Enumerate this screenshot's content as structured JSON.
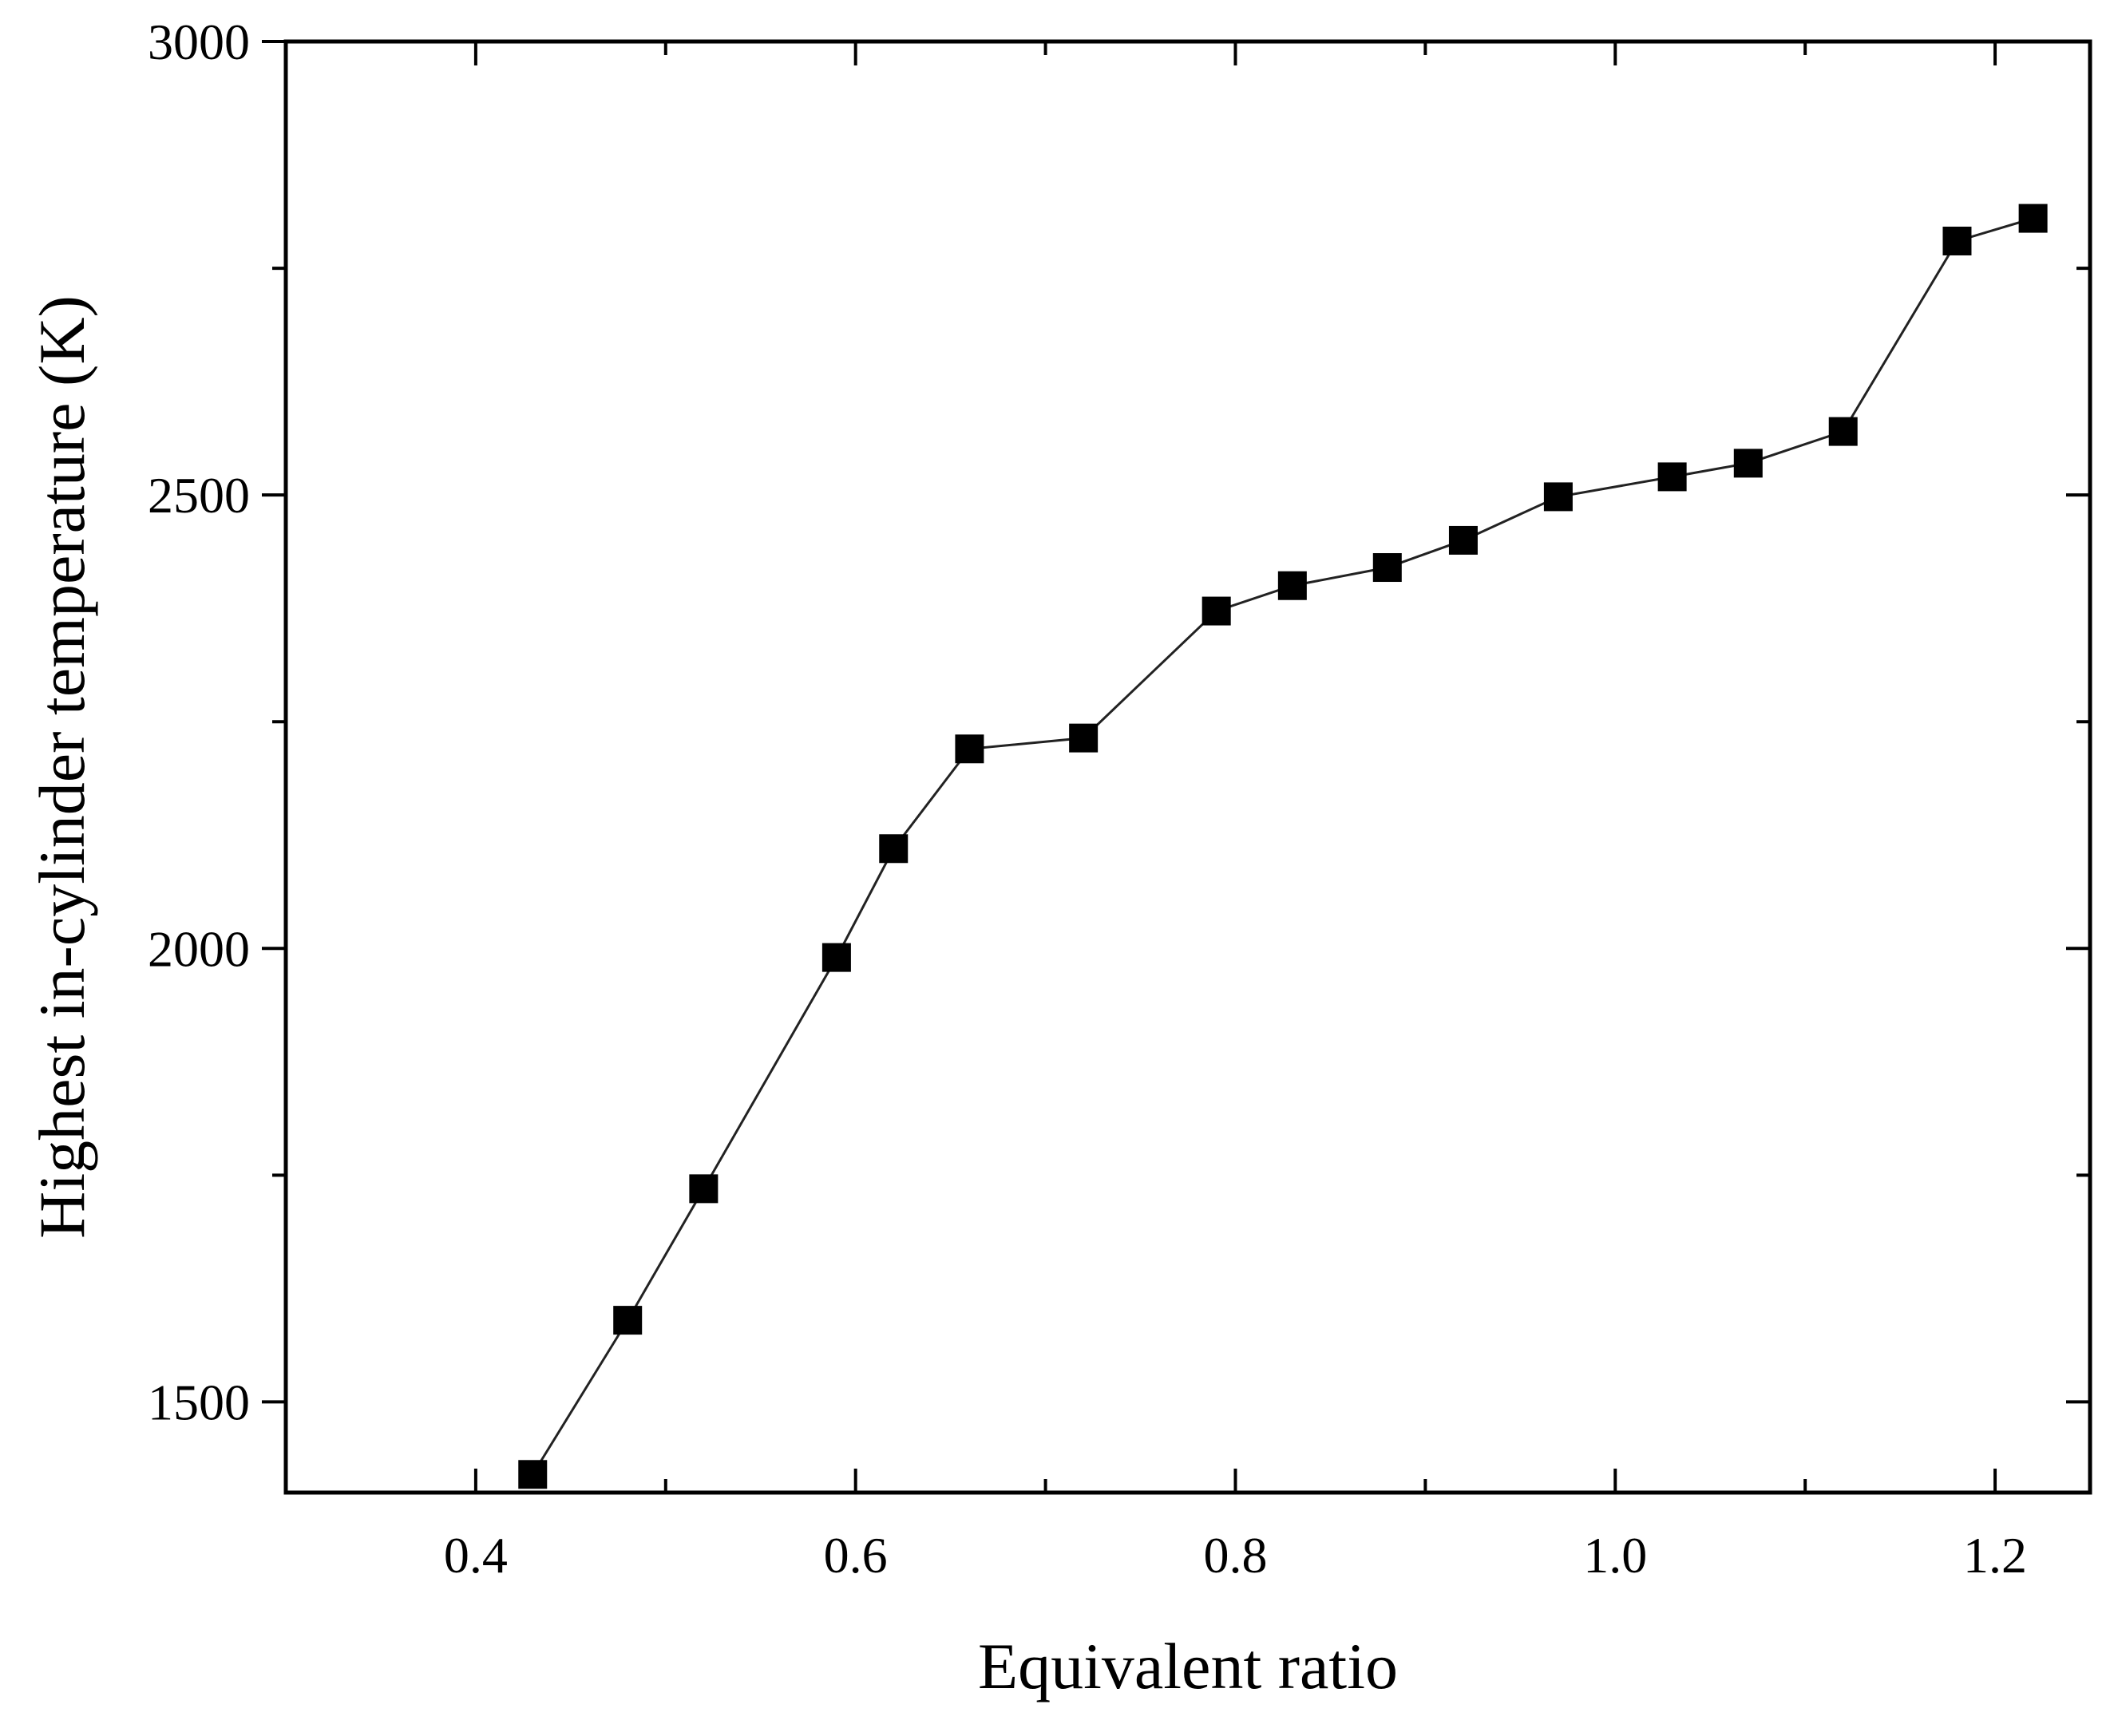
{
  "chart_data": {
    "type": "line",
    "title": "",
    "xlabel": "Equivalent ratio",
    "ylabel": "Highest in-cylinder temperature (K)",
    "xlim": [
      0.3,
      1.25
    ],
    "ylim": [
      1400,
      3000
    ],
    "x_ticks": [
      0.4,
      0.6,
      0.8,
      1.0,
      1.2
    ],
    "x_tick_labels": [
      "0.4",
      "0.6",
      "0.8",
      "1.0",
      "1.2"
    ],
    "y_ticks": [
      1500,
      2000,
      2500,
      3000
    ],
    "y_tick_labels": [
      "1500",
      "2000",
      "2500",
      "3000"
    ],
    "x_minor_step": 0.1,
    "y_minor_step": 250,
    "grid": false,
    "marker": "square",
    "color": "#000000",
    "series": [
      {
        "name": "Highest in-cylinder temperature",
        "x": [
          0.43,
          0.48,
          0.52,
          0.59,
          0.62,
          0.66,
          0.72,
          0.79,
          0.83,
          0.88,
          0.92,
          0.97,
          1.03,
          1.07,
          1.12,
          1.18,
          1.22
        ],
        "y": [
          1420,
          1590,
          1735,
          1990,
          2110,
          2220,
          2232,
          2372,
          2400,
          2420,
          2450,
          2498,
          2520,
          2535,
          2570,
          2780,
          2805
        ]
      }
    ]
  }
}
